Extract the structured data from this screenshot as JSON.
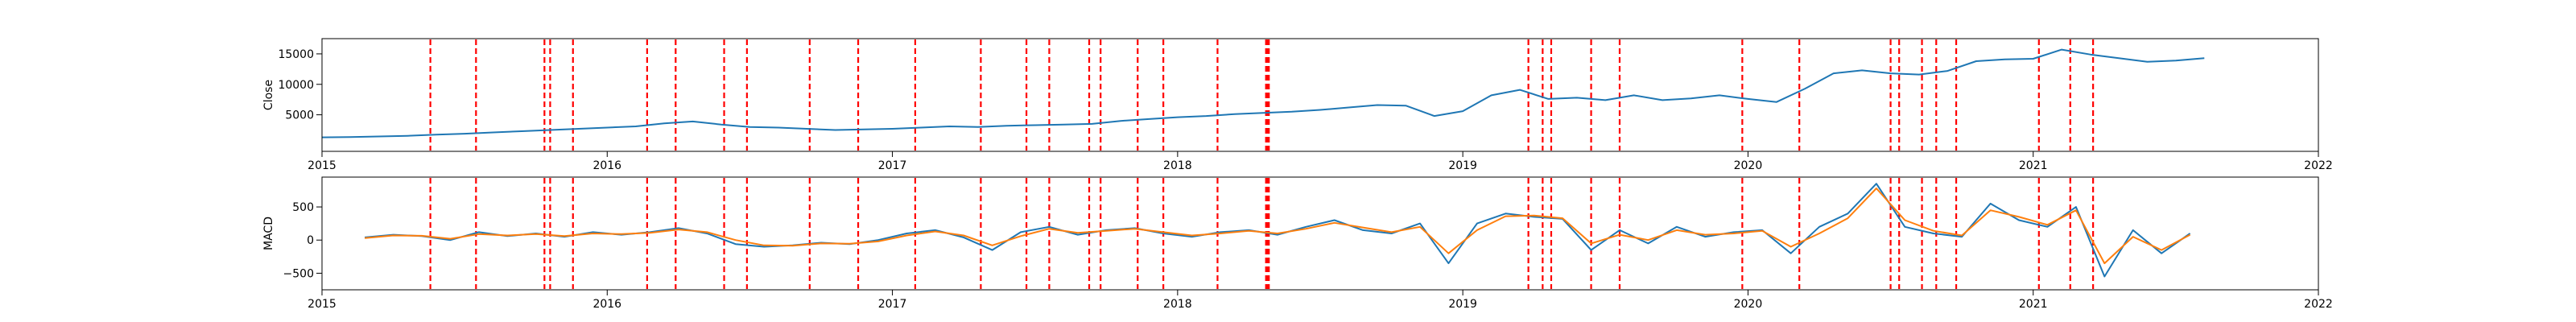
{
  "chart_data": [
    {
      "type": "line",
      "ylabel": "Close",
      "xlim": [
        2015.0,
        2022.0
      ],
      "ylim": [
        -1000,
        17500
      ],
      "xticks": [
        2015,
        2016,
        2017,
        2018,
        2019,
        2020,
        2021,
        2022
      ],
      "xtick_labels": [
        "2015",
        "2016",
        "2017",
        "2018",
        "2019",
        "2020",
        "2021",
        "2022"
      ],
      "yticks": [
        5000,
        10000,
        15000
      ],
      "ytick_labels": [
        "5000",
        "10000",
        "15000"
      ],
      "grid": false,
      "series": [
        {
          "color": "#1f77b4",
          "x": [
            2015.0,
            2015.1,
            2015.2,
            2015.3,
            2015.4,
            2015.5,
            2015.6,
            2015.7,
            2015.8,
            2015.9,
            2016.0,
            2016.1,
            2016.2,
            2016.3,
            2016.4,
            2016.5,
            2016.6,
            2016.7,
            2016.8,
            2016.9,
            2017.0,
            2017.1,
            2017.2,
            2017.3,
            2017.4,
            2017.5,
            2017.6,
            2017.7,
            2017.8,
            2017.9,
            2018.0,
            2018.1,
            2018.2,
            2018.3,
            2018.4,
            2018.5,
            2018.6,
            2018.7,
            2018.8,
            2018.9,
            2019.0,
            2019.1,
            2019.2,
            2019.3,
            2019.4,
            2019.5,
            2019.6,
            2019.7,
            2019.8,
            2019.9,
            2020.0,
            2020.1,
            2020.2,
            2020.3,
            2020.4,
            2020.5,
            2020.6,
            2020.7,
            2020.8,
            2020.9,
            2021.0,
            2021.1,
            2021.2,
            2021.3,
            2021.4,
            2021.5,
            2021.6
          ],
          "values": [
            1300,
            1350,
            1450,
            1550,
            1750,
            1900,
            2100,
            2300,
            2500,
            2700,
            2900,
            3100,
            3600,
            3900,
            3400,
            3000,
            2900,
            2700,
            2500,
            2600,
            2700,
            2900,
            3100,
            3000,
            3200,
            3300,
            3400,
            3500,
            4000,
            4300,
            4600,
            4800,
            5100,
            5300,
            5500,
            5800,
            6200,
            6600,
            6500,
            4800,
            5600,
            8200,
            9100,
            7600,
            7800,
            7400,
            8200,
            7400,
            7700,
            8200,
            7600,
            7100,
            9300,
            11800,
            12300,
            11800,
            11600,
            12200,
            13800,
            14100,
            14200,
            15700,
            14900,
            14300,
            13700,
            13900,
            14300
          ]
        }
      ]
    },
    {
      "type": "line",
      "ylabel": "MACD",
      "xlim": [
        2015.0,
        2022.0
      ],
      "ylim": [
        -750,
        950
      ],
      "xticks": [
        2015,
        2016,
        2017,
        2018,
        2019,
        2020,
        2021,
        2022
      ],
      "xtick_labels": [
        "2015",
        "2016",
        "2017",
        "2018",
        "2019",
        "2020",
        "2021",
        "2022"
      ],
      "yticks": [
        -500,
        0,
        500
      ],
      "ytick_labels": [
        "−500",
        "0",
        "500"
      ],
      "grid": false,
      "series": [
        {
          "color": "#1f77b4",
          "x": [
            2015.15,
            2015.25,
            2015.35,
            2015.45,
            2015.55,
            2015.65,
            2015.75,
            2015.85,
            2015.95,
            2016.05,
            2016.15,
            2016.25,
            2016.35,
            2016.45,
            2016.55,
            2016.65,
            2016.75,
            2016.85,
            2016.95,
            2017.05,
            2017.15,
            2017.25,
            2017.35,
            2017.45,
            2017.55,
            2017.65,
            2017.75,
            2017.85,
            2017.95,
            2018.05,
            2018.15,
            2018.25,
            2018.35,
            2018.45,
            2018.55,
            2018.65,
            2018.75,
            2018.85,
            2018.95,
            2019.05,
            2019.15,
            2019.25,
            2019.35,
            2019.45,
            2019.55,
            2019.65,
            2019.75,
            2019.85,
            2019.95,
            2020.05,
            2020.15,
            2020.25,
            2020.35,
            2020.45,
            2020.55,
            2020.65,
            2020.75,
            2020.85,
            2020.95,
            2021.05,
            2021.15,
            2021.25,
            2021.35,
            2021.45,
            2021.55
          ],
          "values": [
            40,
            80,
            60,
            0,
            120,
            60,
            100,
            50,
            120,
            80,
            120,
            180,
            100,
            -60,
            -100,
            -80,
            -40,
            -60,
            0,
            100,
            150,
            40,
            -150,
            120,
            200,
            80,
            150,
            180,
            100,
            50,
            120,
            150,
            80,
            200,
            300,
            150,
            100,
            250,
            -350,
            250,
            400,
            350,
            320,
            -150,
            150,
            -50,
            200,
            50,
            120,
            150,
            -200,
            200,
            400,
            850,
            200,
            100,
            50,
            550,
            300,
            200,
            500,
            -550,
            150,
            -200,
            100
          ]
        },
        {
          "color": "#ff7f0e",
          "x": [
            2015.15,
            2015.25,
            2015.35,
            2015.45,
            2015.55,
            2015.65,
            2015.75,
            2015.85,
            2015.95,
            2016.05,
            2016.15,
            2016.25,
            2016.35,
            2016.45,
            2016.55,
            2016.65,
            2016.75,
            2016.85,
            2016.95,
            2017.05,
            2017.15,
            2017.25,
            2017.35,
            2017.45,
            2017.55,
            2017.65,
            2017.75,
            2017.85,
            2017.95,
            2018.05,
            2018.15,
            2018.25,
            2018.35,
            2018.45,
            2018.55,
            2018.65,
            2018.75,
            2018.85,
            2018.95,
            2019.05,
            2019.15,
            2019.25,
            2019.35,
            2019.45,
            2019.55,
            2019.65,
            2019.75,
            2019.85,
            2019.95,
            2020.05,
            2020.15,
            2020.25,
            2020.35,
            2020.45,
            2020.55,
            2020.65,
            2020.75,
            2020.85,
            2020.95,
            2021.05,
            2021.15,
            2021.25,
            2021.35,
            2021.45,
            2021.55
          ],
          "values": [
            30,
            70,
            65,
            20,
            90,
            70,
            90,
            60,
            100,
            90,
            110,
            160,
            120,
            0,
            -80,
            -85,
            -50,
            -55,
            -20,
            70,
            130,
            70,
            -80,
            60,
            170,
            110,
            140,
            170,
            120,
            70,
            100,
            140,
            100,
            170,
            260,
            190,
            120,
            200,
            -200,
            150,
            360,
            370,
            330,
            -50,
            80,
            0,
            150,
            80,
            100,
            140,
            -100,
            100,
            330,
            780,
            300,
            140,
            70,
            450,
            350,
            230,
            450,
            -350,
            50,
            -150,
            80
          ]
        }
      ]
    }
  ],
  "event_markers": {
    "color": "#ff0000",
    "style": "dashed",
    "x": [
      2015.38,
      2015.54,
      2015.78,
      2015.8,
      2015.88,
      2016.14,
      2016.24,
      2016.41,
      2016.49,
      2016.71,
      2016.88,
      2017.08,
      2017.31,
      2017.47,
      2017.55,
      2017.69,
      2017.73,
      2017.86,
      2017.95,
      2018.14,
      2018.31,
      2018.315,
      2018.32,
      2019.23,
      2019.28,
      2019.31,
      2019.45,
      2019.55,
      2019.98,
      2020.18,
      2020.5,
      2020.53,
      2020.61,
      2020.66,
      2020.73,
      2021.02,
      2021.13,
      2021.21
    ]
  }
}
